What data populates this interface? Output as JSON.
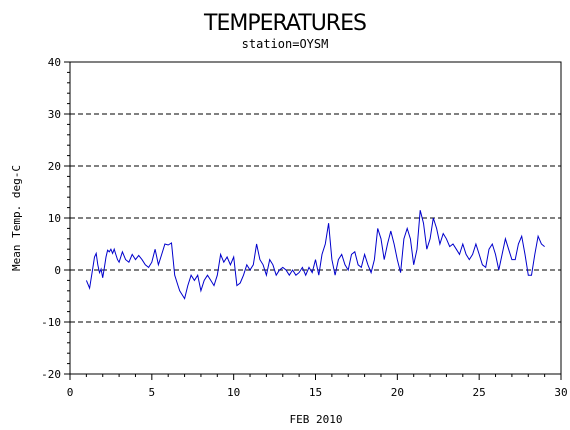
{
  "chart_data": {
    "type": "line",
    "title": "TEMPERATURES",
    "subtitle": "station=OYSM",
    "xlabel": "FEB 2010",
    "ylabel": "Mean Temp. deg-C",
    "xlim": [
      0,
      30
    ],
    "ylim": [
      -20,
      40
    ],
    "xticks": [
      0,
      5,
      10,
      15,
      20,
      25,
      30
    ],
    "yticks": [
      -20,
      -10,
      0,
      10,
      20,
      30,
      40
    ],
    "grid": "dashed-horizontal",
    "line_color": "#0000cc",
    "series": [
      {
        "x": [
          1.0,
          1.2,
          1.4,
          1.5,
          1.6,
          1.7,
          1.8,
          1.9,
          2.0,
          2.1,
          2.2,
          2.3,
          2.4,
          2.5,
          2.6,
          2.7,
          2.8,
          2.9,
          3.0,
          3.2,
          3.4,
          3.6,
          3.8,
          4.0,
          4.2,
          4.4,
          4.6,
          4.8,
          5.0,
          5.2,
          5.4,
          5.6,
          5.8,
          6.0,
          6.2,
          6.4,
          6.6,
          6.7,
          6.8,
          7.0,
          7.2,
          7.4,
          7.6,
          7.8,
          8.0,
          8.2,
          8.4,
          8.6,
          8.8,
          9.0,
          9.2,
          9.4,
          9.6,
          9.8,
          10.0,
          10.2,
          10.4,
          10.6,
          10.8,
          11.0,
          11.2,
          11.4,
          11.6,
          11.8,
          12.0,
          12.2,
          12.4,
          12.6,
          12.8,
          13.0,
          13.2,
          13.4,
          13.6,
          13.8,
          14.0,
          14.2,
          14.4,
          14.6,
          14.8,
          15.0,
          15.2,
          15.4,
          15.6,
          15.8,
          16.0,
          16.2,
          16.4,
          16.6,
          16.8,
          17.0,
          17.2,
          17.4,
          17.6,
          17.8,
          18.0,
          18.2,
          18.4,
          18.6,
          18.8,
          19.0,
          19.2,
          19.4,
          19.6,
          19.8,
          20.0,
          20.2,
          20.4,
          20.6,
          20.8,
          21.0,
          21.2,
          21.4,
          21.6,
          21.8,
          22.0,
          22.2,
          22.4,
          22.6,
          22.8,
          23.0,
          23.2,
          23.4,
          23.6,
          23.8,
          24.0,
          24.2,
          24.4,
          24.6,
          24.8,
          25.0,
          25.2,
          25.4,
          25.6,
          25.8,
          26.0,
          26.2,
          26.4,
          26.6,
          26.8,
          27.0,
          27.2,
          27.4,
          27.6,
          27.8,
          28.0,
          28.2,
          28.4,
          28.6,
          28.8,
          29.0
        ],
        "values": [
          -2.0,
          -3.5,
          0.5,
          2.5,
          3.2,
          1.0,
          -0.5,
          0.2,
          -1.5,
          0.5,
          2.5,
          3.8,
          3.5,
          4.0,
          3.2,
          4.0,
          3.0,
          2.0,
          1.5,
          3.5,
          2.0,
          1.5,
          3.0,
          2.0,
          2.8,
          2.0,
          1.0,
          0.5,
          1.5,
          4.0,
          1.0,
          3.0,
          5.0,
          4.8,
          5.2,
          -1.0,
          -3.0,
          -4.0,
          -4.5,
          -5.5,
          -3.0,
          -1.0,
          -2.0,
          -1.0,
          -4.0,
          -2.0,
          -1.0,
          -2.0,
          -3.0,
          -1.0,
          3.0,
          1.5,
          2.5,
          1.0,
          2.5,
          -3.0,
          -2.5,
          -1.0,
          1.0,
          0.0,
          1.0,
          5.0,
          2.0,
          1.0,
          -1.0,
          2.0,
          1.0,
          -1.0,
          0.0,
          0.5,
          0.0,
          -1.0,
          0.0,
          -1.0,
          -0.5,
          0.5,
          -1.0,
          0.5,
          -0.5,
          2.0,
          -1.0,
          3.0,
          5.0,
          9.0,
          2.0,
          -1.0,
          2.0,
          3.0,
          1.0,
          0.0,
          3.0,
          3.5,
          1.0,
          0.5,
          3.0,
          1.0,
          -0.5,
          2.0,
          8.0,
          6.0,
          2.0,
          5.0,
          7.5,
          5.0,
          2.0,
          -0.5,
          6.0,
          8.0,
          6.0,
          1.0,
          4.0,
          11.5,
          9.0,
          4.0,
          6.0,
          10.0,
          8.0,
          5.0,
          7.0,
          6.0,
          4.5,
          5.0,
          4.0,
          3.0,
          5.0,
          3.0,
          2.0,
          3.0,
          5.0,
          3.0,
          1.0,
          0.5,
          4.0,
          5.0,
          3.0,
          0.0,
          3.0,
          6.0,
          4.0,
          2.0,
          2.0,
          5.0,
          6.5,
          3.0,
          -1.0,
          -1.0,
          3.0,
          6.5,
          5.0,
          4.5
        ]
      }
    ]
  }
}
